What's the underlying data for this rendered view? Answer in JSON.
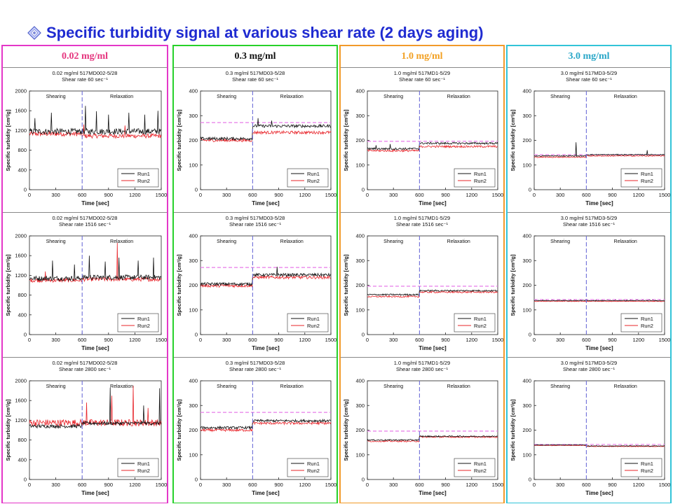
{
  "page": {
    "title": "Specific turbidity signal at various shear rate (2 days aging)"
  },
  "chart_common": {
    "xlabel": "Time [sec]",
    "ylabel": "Specific turbidity [cm²/g]",
    "phase_left": "Shearing",
    "phase_right": "Relaxation",
    "x_ticks": [
      "0",
      "300",
      "600",
      "900",
      "1200",
      "1500"
    ],
    "legend": [
      "Run1",
      "Run2"
    ],
    "colors": {
      "run1": "#111111",
      "run2": "#e8242a",
      "divider": "#6f6fd8",
      "reference": "#e77be8"
    }
  },
  "columns": [
    {
      "label": "0.02 mg/ml",
      "color": "#e5357e",
      "border": "#e437c8"
    },
    {
      "label": "0.3 mg/ml",
      "color": "#111111",
      "border": "#27d12a"
    },
    {
      "label": "1.0 mg/ml",
      "color": "#f2a022",
      "border": "#f29a2a"
    },
    {
      "label": "3.0 mg/ml",
      "color": "#29a7c8",
      "border": "#32c4d8"
    }
  ],
  "chart_data": [
    {
      "type": "line",
      "title": "0.02 mg/ml 517MD002-5/28",
      "subtitle": "Shear rate 60 sec⁻¹",
      "xlim": [
        0,
        1500
      ],
      "ylim": [
        0,
        2000
      ],
      "y_ticks": [
        "0",
        "400",
        "800",
        "1200",
        "1600",
        "2000"
      ],
      "reference": null,
      "series": [
        {
          "name": "Run1",
          "level_before": 1180,
          "level_after": 1180,
          "noise": 60,
          "spikes": [
            [
              60,
              1450
            ],
            [
              250,
              1560
            ],
            [
              640,
              1700
            ],
            [
              760,
              1590
            ],
            [
              900,
              1520
            ],
            [
              1130,
              1560
            ],
            [
              1310,
              1520
            ],
            [
              1460,
              1600
            ]
          ]
        },
        {
          "name": "Run2",
          "level_before": 1130,
          "level_after": 1090,
          "noise": 45,
          "spikes": [
            [
              620,
              1320
            ],
            [
              1090,
              1300
            ]
          ]
        }
      ]
    },
    {
      "type": "line",
      "title": "0.3 mg/ml 517MD03-5/28",
      "subtitle": "Shear rate 60 sec⁻¹",
      "xlim": [
        0,
        1500
      ],
      "ylim": [
        0,
        400
      ],
      "y_ticks": [
        "0",
        "100",
        "200",
        "300",
        "400"
      ],
      "reference": 272,
      "series": [
        {
          "name": "Run1",
          "level_before": 207,
          "level_after": 258,
          "noise": 6,
          "spikes": [
            [
              660,
              290
            ],
            [
              820,
              280
            ]
          ]
        },
        {
          "name": "Run2",
          "level_before": 200,
          "level_after": 232,
          "noise": 6,
          "spikes": []
        }
      ]
    },
    {
      "type": "line",
      "title": "1.0 mg/ml 517MD1-5/29",
      "subtitle": "Shear rate 60 sec⁻¹",
      "xlim": [
        0,
        1500
      ],
      "ylim": [
        0,
        400
      ],
      "y_ticks": [
        "0",
        "100",
        "200",
        "300",
        "400"
      ],
      "reference": 196,
      "series": [
        {
          "name": "Run1",
          "level_before": 166,
          "level_after": 188,
          "noise": 4,
          "spikes": [
            [
              100,
              180
            ],
            [
              260,
              185
            ]
          ]
        },
        {
          "name": "Run2",
          "level_before": 158,
          "level_after": 175,
          "noise": 4,
          "spikes": []
        }
      ]
    },
    {
      "type": "line",
      "title": "3.0 mg/ml 517MD3-5/29",
      "subtitle": "Shear rate 60 sec⁻¹",
      "xlim": [
        0,
        1500
      ],
      "ylim": [
        0,
        400
      ],
      "y_ticks": [
        "0",
        "100",
        "200",
        "300",
        "400"
      ],
      "reference": 142,
      "series": [
        {
          "name": "Run1",
          "level_before": 137,
          "level_after": 142,
          "noise": 2,
          "spikes": [
            [
              480,
              192
            ],
            [
              1300,
              160
            ]
          ]
        },
        {
          "name": "Run2",
          "level_before": 132,
          "level_after": 137,
          "noise": 2,
          "spikes": []
        }
      ]
    },
    {
      "type": "line",
      "title": "0.02 mg/ml 517MD002-5/28",
      "subtitle": "Shear rate 1516 sec⁻¹",
      "xlim": [
        0,
        1500
      ],
      "ylim": [
        0,
        2000
      ],
      "y_ticks": [
        "0",
        "400",
        "800",
        "1200",
        "1600",
        "2000"
      ],
      "reference": null,
      "series": [
        {
          "name": "Run1",
          "level_before": 1140,
          "level_after": 1160,
          "noise": 50,
          "spikes": [
            [
              260,
              1500
            ],
            [
              510,
              1420
            ],
            [
              680,
              1600
            ],
            [
              860,
              1480
            ],
            [
              1020,
              1560
            ],
            [
              1240,
              1500
            ],
            [
              1410,
              1560
            ]
          ]
        },
        {
          "name": "Run2",
          "level_before": 1100,
          "level_after": 1120,
          "noise": 40,
          "spikes": [
            [
              180,
              1280
            ],
            [
              1000,
              1860
            ]
          ]
        }
      ]
    },
    {
      "type": "line",
      "title": "0.3 mg/ml 517MD03-5/28",
      "subtitle": "Shear rate 1516 sec⁻¹",
      "xlim": [
        0,
        1500
      ],
      "ylim": [
        0,
        400
      ],
      "y_ticks": [
        "0",
        "100",
        "200",
        "300",
        "400"
      ],
      "reference": 272,
      "series": [
        {
          "name": "Run1",
          "level_before": 205,
          "level_after": 242,
          "noise": 6,
          "spikes": [
            [
              880,
              275
            ]
          ]
        },
        {
          "name": "Run2",
          "level_before": 198,
          "level_after": 232,
          "noise": 6,
          "spikes": []
        }
      ]
    },
    {
      "type": "line",
      "title": "1.0 mg/ml 517MD1-5/29",
      "subtitle": "Shear rate 1516 sec⁻¹",
      "xlim": [
        0,
        1500
      ],
      "ylim": [
        0,
        400
      ],
      "y_ticks": [
        "0",
        "100",
        "200",
        "300",
        "400"
      ],
      "reference": 196,
      "series": [
        {
          "name": "Run1",
          "level_before": 162,
          "level_after": 178,
          "noise": 3,
          "spikes": []
        },
        {
          "name": "Run2",
          "level_before": 154,
          "level_after": 172,
          "noise": 3,
          "spikes": []
        }
      ]
    },
    {
      "type": "line",
      "title": "3.0 mg/ml 517MD3-5/29",
      "subtitle": "Shear rate 1516 sec⁻¹",
      "xlim": [
        0,
        1500
      ],
      "ylim": [
        0,
        400
      ],
      "y_ticks": [
        "0",
        "100",
        "200",
        "300",
        "400"
      ],
      "reference": 142,
      "series": [
        {
          "name": "Run1",
          "level_before": 138,
          "level_after": 138,
          "noise": 1.5,
          "spikes": []
        },
        {
          "name": "Run2",
          "level_before": 135,
          "level_after": 135,
          "noise": 1.5,
          "spikes": []
        }
      ]
    },
    {
      "type": "line",
      "title": "0.02 mg/ml 517MD002-5/28",
      "subtitle": "Shear rate 2800 sec⁻¹",
      "xlim": [
        0,
        1500
      ],
      "ylim": [
        0,
        2000
      ],
      "y_ticks": [
        "0",
        "400",
        "800",
        "1200",
        "1600",
        "2000"
      ],
      "reference": null,
      "series": [
        {
          "name": "Run1",
          "level_before": 1080,
          "level_after": 1140,
          "noise": 35,
          "spikes": [
            [
              920,
              1860
            ],
            [
              1300,
              1500
            ],
            [
              1480,
              1850
            ]
          ]
        },
        {
          "name": "Run2",
          "level_before": 1150,
          "level_after": 1150,
          "noise": 70,
          "spikes": [
            [
              650,
              1560
            ],
            [
              940,
              1700
            ],
            [
              1180,
              1900
            ],
            [
              1350,
              1450
            ]
          ]
        }
      ]
    },
    {
      "type": "line",
      "title": "0.3 mg/ml 517MD03-5/28",
      "subtitle": "Shear rate 2800 sec⁻¹",
      "xlim": [
        0,
        1500
      ],
      "ylim": [
        0,
        400
      ],
      "y_ticks": [
        "0",
        "100",
        "200",
        "300",
        "400"
      ],
      "reference": 272,
      "series": [
        {
          "name": "Run1",
          "level_before": 210,
          "level_after": 238,
          "noise": 5,
          "spikes": []
        },
        {
          "name": "Run2",
          "level_before": 200,
          "level_after": 228,
          "noise": 5,
          "spikes": []
        }
      ]
    },
    {
      "type": "line",
      "title": "1.0 mg/ml 517MD1-5/29",
      "subtitle": "Shear rate 2800 sec⁻¹",
      "xlim": [
        0,
        1500
      ],
      "ylim": [
        0,
        400
      ],
      "y_ticks": [
        "0",
        "100",
        "200",
        "300",
        "400"
      ],
      "reference": 196,
      "series": [
        {
          "name": "Run1",
          "level_before": 160,
          "level_after": 175,
          "noise": 2.5,
          "spikes": []
        },
        {
          "name": "Run2",
          "level_before": 155,
          "level_after": 172,
          "noise": 2.5,
          "spikes": []
        }
      ]
    },
    {
      "type": "line",
      "title": "3.0 mg/ml 517MD3-5/29",
      "subtitle": "Shear rate 2800 sec⁻¹",
      "xlim": [
        0,
        1500
      ],
      "ylim": [
        0,
        400
      ],
      "y_ticks": [
        "0",
        "100",
        "200",
        "300",
        "400"
      ],
      "reference": 142,
      "series": [
        {
          "name": "Run1",
          "level_before": 140,
          "level_after": 136,
          "noise": 1.2,
          "spikes": []
        },
        {
          "name": "Run2",
          "level_before": 138,
          "level_after": 134,
          "noise": 1.2,
          "spikes": []
        }
      ]
    }
  ]
}
